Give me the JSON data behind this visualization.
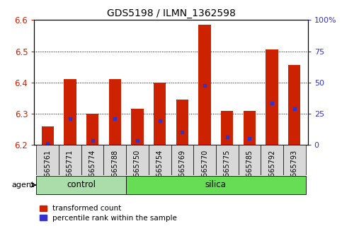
{
  "title": "GDS5198 / ILMN_1362598",
  "samples": [
    "GSM665761",
    "GSM665771",
    "GSM665774",
    "GSM665788",
    "GSM665750",
    "GSM665754",
    "GSM665769",
    "GSM665770",
    "GSM665775",
    "GSM665785",
    "GSM665792",
    "GSM665793"
  ],
  "groups": [
    "control",
    "control",
    "control",
    "control",
    "silica",
    "silica",
    "silica",
    "silica",
    "silica",
    "silica",
    "silica",
    "silica"
  ],
  "transformed_count": [
    6.26,
    6.41,
    6.3,
    6.41,
    6.315,
    6.4,
    6.345,
    6.585,
    6.31,
    6.31,
    6.505,
    6.455
  ],
  "percentile_rank": [
    6.205,
    6.285,
    6.215,
    6.285,
    6.215,
    6.277,
    6.242,
    6.39,
    6.225,
    6.222,
    6.335,
    6.315
  ],
  "ylim": [
    6.2,
    6.6
  ],
  "y2lim": [
    0,
    100
  ],
  "y2ticks": [
    0,
    25,
    50,
    75,
    100
  ],
  "bar_color": "#cc2200",
  "dot_color": "#3333cc",
  "control_bg": "#c8f0c0",
  "silica_bg": "#66dd55",
  "bar_width": 0.55,
  "agent_label": "agent",
  "legend_items": [
    "transformed count",
    "percentile rank within the sample"
  ]
}
